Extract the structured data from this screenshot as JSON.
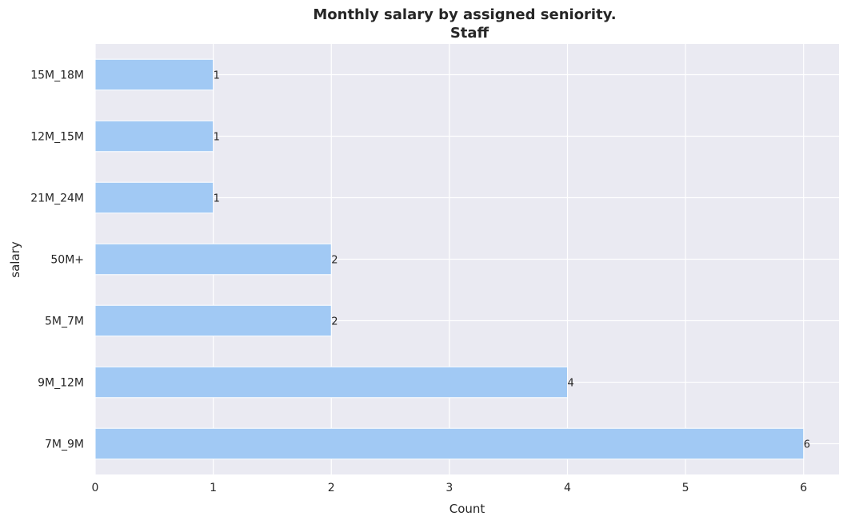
{
  "chart_data": {
    "type": "bar",
    "orientation": "horizontal",
    "title": "Monthly salary by assigned seniority.",
    "subtitle": "Staff",
    "xlabel": "Count",
    "ylabel": "salary",
    "categories": [
      "15M_18M",
      "12M_15M",
      "21M_24M",
      "50M+",
      "5M_7M",
      "9M_12M",
      "7M_9M"
    ],
    "values": [
      1,
      1,
      1,
      2,
      2,
      4,
      6
    ],
    "xlim": [
      0,
      6.3
    ],
    "xticks": [
      0,
      1,
      2,
      3,
      4,
      5,
      6
    ],
    "grid": true,
    "colors": {
      "bar": "#a1c9f4",
      "plot_background": "#eaeaf2",
      "grid": "#ffffff",
      "text": "#262626"
    }
  }
}
